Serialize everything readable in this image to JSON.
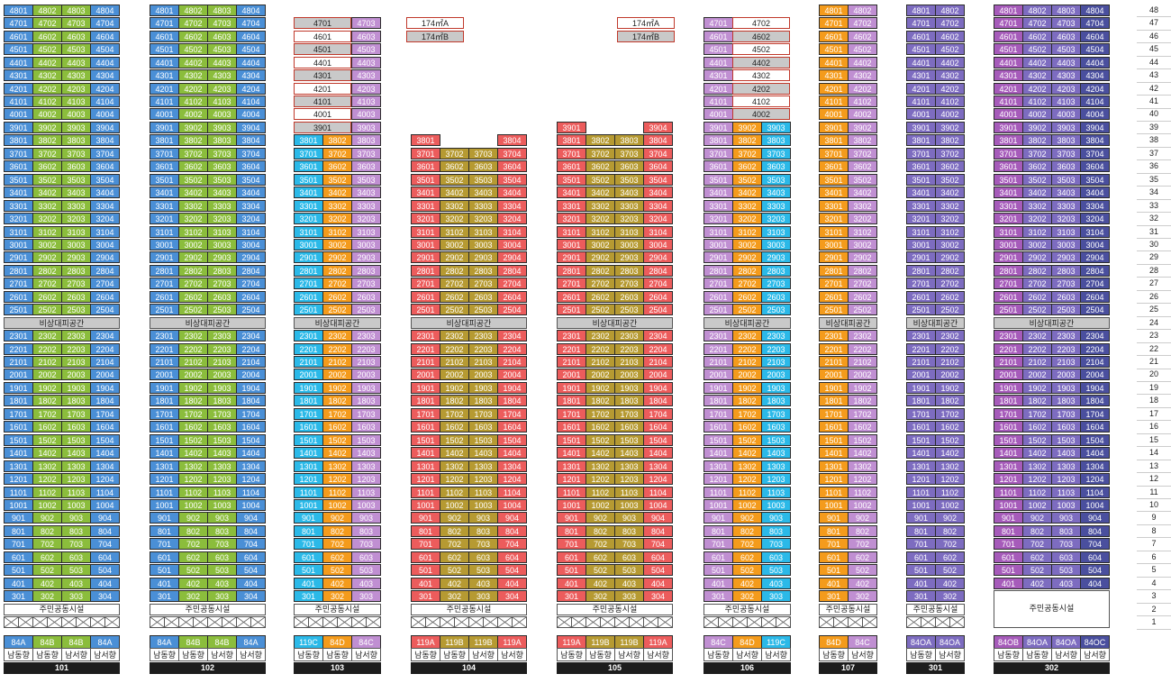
{
  "colors": {
    "blue": "#4a8fd6",
    "green": "#8bbd3c",
    "cyan": "#2bb9e8",
    "orange": "#f49b1c",
    "lilac": "#c08fd2",
    "red": "#ec5c5c",
    "olive": "#b69a32",
    "purple": "#7d6cc0",
    "magenta": "#a65bba",
    "navy": "#4a4f9e",
    "white": "#ffffff",
    "gray": "#c9c9c9"
  },
  "labels": {
    "refuge": "비상대피공간",
    "amenity": "주민공동시설"
  },
  "floors": [
    "1",
    "2",
    "3",
    "4",
    "5",
    "6",
    "7",
    "8",
    "9",
    "10",
    "11",
    "12",
    "13",
    "14",
    "15",
    "16",
    "17",
    "18",
    "19",
    "20",
    "21",
    "22",
    "23",
    "24",
    "25",
    "26",
    "27",
    "28",
    "29",
    "30",
    "31",
    "32",
    "33",
    "34",
    "35",
    "36",
    "37",
    "38",
    "39",
    "40",
    "41",
    "42",
    "43",
    "44",
    "45",
    "46",
    "47",
    "48"
  ],
  "buildings": [
    {
      "name": "101",
      "units": [
        {
          "no": "01",
          "color": "blue",
          "top": 48,
          "type": "84A",
          "dir": "남동향"
        },
        {
          "no": "02",
          "color": "green",
          "top": 48,
          "type": "84B",
          "dir": "남동향"
        },
        {
          "no": "03",
          "color": "green",
          "top": 48,
          "type": "84B",
          "dir": "남서향"
        },
        {
          "no": "04",
          "color": "blue",
          "top": 48,
          "type": "84A",
          "dir": "남서향"
        }
      ],
      "amenity_floor": 2
    },
    {
      "name": "102",
      "units": [
        {
          "no": "01",
          "color": "blue",
          "top": 48,
          "type": "84A",
          "dir": "남동향"
        },
        {
          "no": "02",
          "color": "green",
          "top": 48,
          "type": "84B",
          "dir": "남동향"
        },
        {
          "no": "03",
          "color": "green",
          "top": 48,
          "type": "84B",
          "dir": "남서향"
        },
        {
          "no": "04",
          "color": "blue",
          "top": 48,
          "type": "84A",
          "dir": "남서향"
        }
      ],
      "amenity_floor": 2
    },
    {
      "name": "103",
      "units": [
        {
          "no": "01",
          "color": "cyan",
          "top": 38,
          "type": "119C",
          "dir": "남동향"
        },
        {
          "no": "02",
          "color": "orange",
          "top": 38,
          "type": "84D",
          "dir": "남동향"
        },
        {
          "no": "03",
          "color": "lilac",
          "top": 47,
          "type": "84C",
          "dir": "남서향"
        }
      ],
      "penthouse": [
        {
          "label": "4701",
          "floor": 47,
          "style": "gray"
        },
        {
          "label": "4601",
          "floor": 46,
          "style": "white"
        },
        {
          "label": "4501",
          "floor": 45,
          "style": "gray"
        },
        {
          "label": "4401",
          "floor": 44,
          "style": "white"
        },
        {
          "label": "4301",
          "floor": 43,
          "style": "gray"
        },
        {
          "label": "4201",
          "floor": 42,
          "style": "white"
        },
        {
          "label": "4101",
          "floor": 41,
          "style": "gray"
        },
        {
          "label": "4001",
          "floor": 40,
          "style": "white"
        },
        {
          "label": "3901",
          "floor": 39,
          "style": "gray"
        }
      ],
      "amenity_floor": 2
    },
    {
      "name": "104",
      "units": [
        {
          "no": "01",
          "color": "red",
          "top": 38,
          "type": "119A",
          "dir": "남동향"
        },
        {
          "no": "02",
          "color": "olive",
          "top": 37,
          "type": "119B",
          "dir": "남동향"
        },
        {
          "no": "03",
          "color": "olive",
          "top": 37,
          "type": "119B",
          "dir": "남서향"
        },
        {
          "no": "04",
          "color": "red",
          "top": 38,
          "type": "119A",
          "dir": "남서향"
        }
      ],
      "penthouse_legend": [
        {
          "label": "174㎡A",
          "style": "white"
        },
        {
          "label": "174㎡B",
          "style": "gray"
        }
      ],
      "amenity_floor": 2
    },
    {
      "name": "105",
      "units": [
        {
          "no": "01",
          "color": "red",
          "top": 39,
          "type": "119A",
          "dir": "남동향"
        },
        {
          "no": "02",
          "color": "olive",
          "top": 38,
          "type": "119B",
          "dir": "남동향"
        },
        {
          "no": "03",
          "color": "olive",
          "top": 38,
          "type": "119B",
          "dir": "남서향"
        },
        {
          "no": "04",
          "color": "red",
          "top": 39,
          "type": "119A",
          "dir": "남서향"
        }
      ],
      "penthouse_legend": [
        {
          "label": "174㎡A",
          "style": "white"
        },
        {
          "label": "174㎡B",
          "style": "gray"
        }
      ],
      "amenity_floor": 2
    },
    {
      "name": "106",
      "units": [
        {
          "no": "01",
          "color": "lilac",
          "top": 47,
          "type": "84C",
          "dir": "남동향"
        },
        {
          "no": "02",
          "color": "orange",
          "top": 39,
          "type": "84D",
          "dir": "남서향"
        },
        {
          "no": "03",
          "color": "cyan",
          "top": 39,
          "type": "119C",
          "dir": "남서향"
        }
      ],
      "penthouse": [
        {
          "label": "4702",
          "floor": 47,
          "style": "white"
        },
        {
          "label": "4602",
          "floor": 46,
          "style": "gray"
        },
        {
          "label": "4502",
          "floor": 45,
          "style": "white"
        },
        {
          "label": "4402",
          "floor": 44,
          "style": "gray"
        },
        {
          "label": "4302",
          "floor": 43,
          "style": "white"
        },
        {
          "label": "4202",
          "floor": 42,
          "style": "gray"
        },
        {
          "label": "4102",
          "floor": 41,
          "style": "white"
        },
        {
          "label": "4002",
          "floor": 40,
          "style": "gray"
        }
      ],
      "amenity_floor": 2
    },
    {
      "name": "107",
      "units": [
        {
          "no": "01",
          "color": "orange",
          "top": 48,
          "type": "84D",
          "dir": "남동향"
        },
        {
          "no": "02",
          "color": "lilac",
          "top": 48,
          "type": "84C",
          "dir": "남서향"
        }
      ],
      "amenity_floor": 2
    },
    {
      "name": "301",
      "units": [
        {
          "no": "01",
          "color": "purple",
          "top": 48,
          "type": "84OA",
          "dir": "남동향"
        },
        {
          "no": "02",
          "color": "purple",
          "top": 48,
          "type": "84OA",
          "dir": "남서향"
        }
      ],
      "amenity_floor": 2
    },
    {
      "name": "302",
      "units": [
        {
          "no": "01",
          "color": "magenta",
          "top": 48,
          "type": "84OB",
          "dir": "남동향"
        },
        {
          "no": "02",
          "color": "purple",
          "top": 48,
          "type": "84OA",
          "dir": "남동향"
        },
        {
          "no": "03",
          "color": "purple",
          "top": 48,
          "type": "84OA",
          "dir": "남서향"
        },
        {
          "no": "04",
          "color": "navy",
          "top": 48,
          "type": "84OC",
          "dir": "남서향"
        }
      ],
      "amenity_floor": 3
    }
  ]
}
